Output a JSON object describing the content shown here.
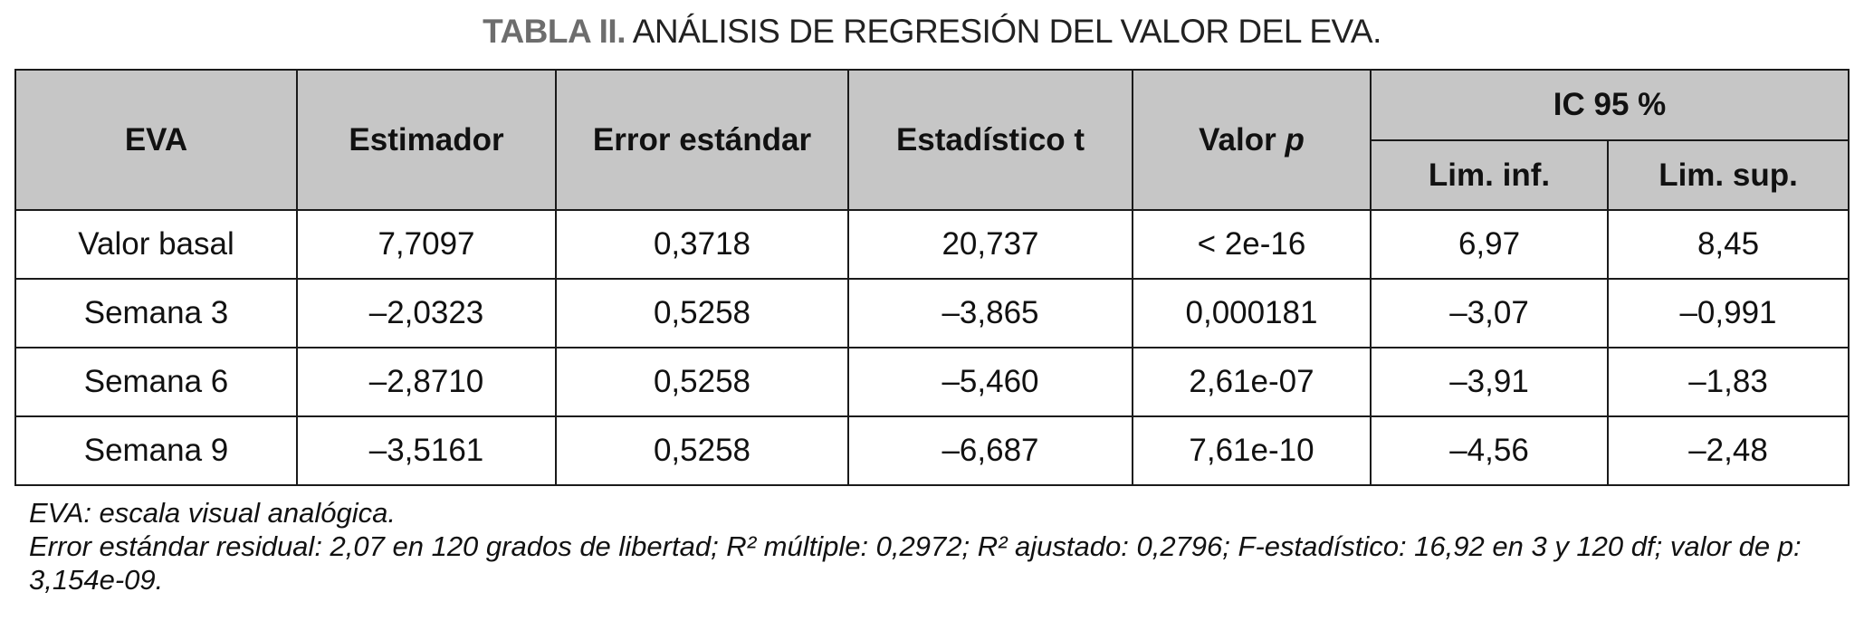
{
  "title": {
    "lead": "TABLA II.",
    "rest": "ANÁLISIS DE REGRESIÓN DEL VALOR DEL EVA."
  },
  "table": {
    "headers": [
      "EVA",
      "Estimador",
      "Error estándar",
      "Estadístico t",
      "Valor",
      "p",
      "IC 95 %"
    ],
    "subheaders": [
      "Lim. inf.",
      "Lim. sup."
    ],
    "rows": [
      [
        "Valor basal",
        "7,7097",
        "0,3718",
        "20,737",
        "< 2e-16",
        "6,97",
        "8,45"
      ],
      [
        "Semana 3",
        "–2,0323",
        "0,5258",
        "–3,865",
        "0,000181",
        "–3,07",
        "–0,991"
      ],
      [
        "Semana 6",
        "–2,8710",
        "0,5258",
        "–5,460",
        "2,61e-07",
        "–3,91",
        "–1,83"
      ],
      [
        "Semana 9",
        "–3,5161",
        "0,5258",
        "–6,687",
        "7,61e-10",
        "–4,56",
        "–2,48"
      ]
    ]
  },
  "notes": {
    "line1": "EVA: escala visual analógica.",
    "line2": "Error estándar residual: 2,07 en 120 grados de libertad; R² múltiple: 0,2972; R² ajustado: 0,2796; F-estadístico: 16,92 en 3 y 120 df; valor de p: 3,154e-09."
  },
  "colors": {
    "header_bg": "#c6c6c6",
    "title_lead": "#6d6d6d"
  }
}
